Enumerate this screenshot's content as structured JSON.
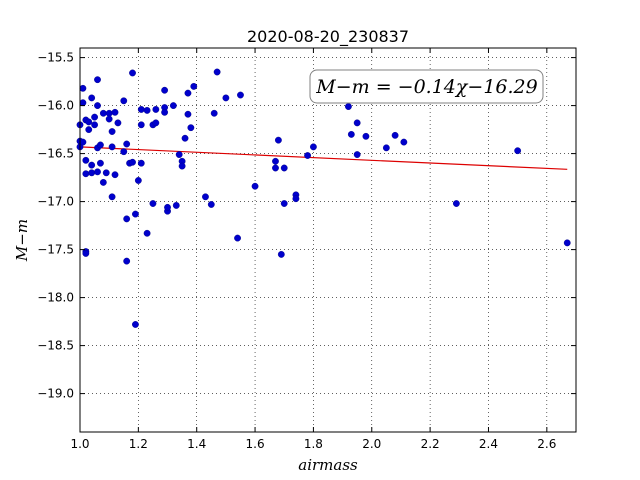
{
  "chart_data": {
    "type": "scatter",
    "title": "2020-08-20_230837",
    "xlabel": "airmass",
    "ylabel": "M−m",
    "xlim": [
      1.0,
      2.7
    ],
    "ylim": [
      -19.4,
      -15.4
    ],
    "x_ticks": [
      1.0,
      1.2,
      1.4,
      1.6,
      1.8,
      2.0,
      2.2,
      2.4,
      2.6
    ],
    "x_tick_labels": [
      "1.0",
      "1.2",
      "1.4",
      "1.6",
      "1.8",
      "2.0",
      "2.2",
      "2.4",
      "2.6"
    ],
    "y_ticks": [
      -15.5,
      -16.0,
      -16.5,
      -17.0,
      -17.5,
      -18.0,
      -18.5,
      -19.0
    ],
    "y_tick_labels": [
      "−15.5",
      "−16.0",
      "−16.5",
      "−17.0",
      "−17.5",
      "−18.0",
      "−18.5",
      "−19.0"
    ],
    "grid": true,
    "annotation": "M−m = −0.14χ−16.29",
    "fit_line": {
      "slope": -0.14,
      "intercept": -16.29,
      "x_range": [
        1.0,
        2.67
      ],
      "color": "#dd0000"
    },
    "point_color": "#0000cc",
    "points": [
      [
        1.0,
        -16.2
      ],
      [
        1.0,
        -16.37
      ],
      [
        1.0,
        -16.43
      ],
      [
        1.01,
        -15.82
      ],
      [
        1.01,
        -15.97
      ],
      [
        1.01,
        -16.38
      ],
      [
        1.02,
        -16.57
      ],
      [
        1.02,
        -16.71
      ],
      [
        1.02,
        -17.52
      ],
      [
        1.02,
        -17.54
      ],
      [
        1.02,
        -16.15
      ],
      [
        1.03,
        -16.25
      ],
      [
        1.03,
        -16.17
      ],
      [
        1.04,
        -15.92
      ],
      [
        1.04,
        -16.62
      ],
      [
        1.04,
        -16.7
      ],
      [
        1.05,
        -16.12
      ],
      [
        1.05,
        -16.2
      ],
      [
        1.06,
        -15.73
      ],
      [
        1.06,
        -16.0
      ],
      [
        1.06,
        -16.44
      ],
      [
        1.06,
        -16.69
      ],
      [
        1.07,
        -16.41
      ],
      [
        1.07,
        -16.6
      ],
      [
        1.08,
        -16.08
      ],
      [
        1.08,
        -16.8
      ],
      [
        1.09,
        -16.7
      ],
      [
        1.1,
        -16.08
      ],
      [
        1.1,
        -16.14
      ],
      [
        1.11,
        -16.27
      ],
      [
        1.11,
        -16.43
      ],
      [
        1.11,
        -16.95
      ],
      [
        1.12,
        -16.07
      ],
      [
        1.12,
        -16.72
      ],
      [
        1.13,
        -16.18
      ],
      [
        1.15,
        -15.95
      ],
      [
        1.15,
        -16.48
      ],
      [
        1.16,
        -17.62
      ],
      [
        1.16,
        -17.18
      ],
      [
        1.16,
        -16.4
      ],
      [
        1.17,
        -16.6
      ],
      [
        1.18,
        -15.66
      ],
      [
        1.18,
        -16.59
      ],
      [
        1.19,
        -18.28
      ],
      [
        1.19,
        -17.13
      ],
      [
        1.2,
        -16.78
      ],
      [
        1.21,
        -16.04
      ],
      [
        1.21,
        -16.6
      ],
      [
        1.21,
        -16.2
      ],
      [
        1.23,
        -17.33
      ],
      [
        1.23,
        -16.05
      ],
      [
        1.25,
        -17.02
      ],
      [
        1.25,
        -16.2
      ],
      [
        1.26,
        -16.18
      ],
      [
        1.26,
        -16.04
      ],
      [
        1.29,
        -15.84
      ],
      [
        1.29,
        -16.02
      ],
      [
        1.29,
        -16.07
      ],
      [
        1.3,
        -17.1
      ],
      [
        1.3,
        -17.06
      ],
      [
        1.32,
        -16.0
      ],
      [
        1.33,
        -17.04
      ],
      [
        1.34,
        -16.51
      ],
      [
        1.35,
        -16.58
      ],
      [
        1.35,
        -16.63
      ],
      [
        1.36,
        -16.34
      ],
      [
        1.37,
        -16.09
      ],
      [
        1.37,
        -15.87
      ],
      [
        1.38,
        -16.23
      ],
      [
        1.39,
        -15.8
      ],
      [
        1.43,
        -16.95
      ],
      [
        1.45,
        -17.03
      ],
      [
        1.46,
        -16.08
      ],
      [
        1.47,
        -15.65
      ],
      [
        1.5,
        -15.92
      ],
      [
        1.54,
        -17.38
      ],
      [
        1.55,
        -15.89
      ],
      [
        1.6,
        -16.84
      ],
      [
        1.67,
        -16.65
      ],
      [
        1.67,
        -16.58
      ],
      [
        1.68,
        -16.36
      ],
      [
        1.69,
        -17.55
      ],
      [
        1.7,
        -17.02
      ],
      [
        1.7,
        -16.65
      ],
      [
        1.74,
        -16.93
      ],
      [
        1.74,
        -16.97
      ],
      [
        1.78,
        -16.52
      ],
      [
        1.8,
        -16.43
      ],
      [
        1.92,
        -16.01
      ],
      [
        1.93,
        -16.3
      ],
      [
        1.95,
        -16.18
      ],
      [
        1.95,
        -16.51
      ],
      [
        1.98,
        -16.32
      ],
      [
        2.05,
        -16.44
      ],
      [
        2.08,
        -16.31
      ],
      [
        2.11,
        -16.38
      ],
      [
        2.29,
        -17.02
      ],
      [
        2.5,
        -16.47
      ],
      [
        2.67,
        -17.43
      ]
    ]
  }
}
